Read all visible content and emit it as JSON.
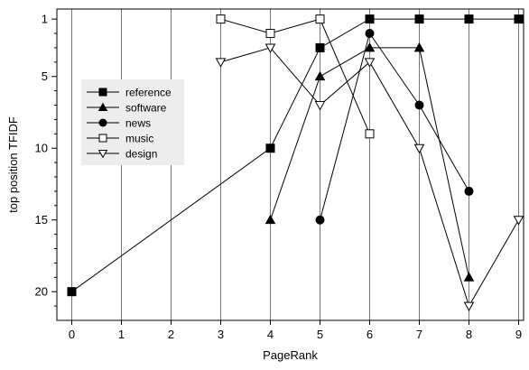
{
  "chart_data": {
    "type": "line",
    "title": "",
    "xlabel": "PageRank",
    "ylabel": "top position TFIDF",
    "x_ticks": [
      0,
      1,
      2,
      3,
      4,
      5,
      6,
      7,
      8,
      9
    ],
    "y_ticks": [
      1,
      5,
      10,
      15,
      20
    ],
    "xlim": [
      -0.3,
      9.1
    ],
    "ylim": [
      22,
      0.3
    ],
    "y_inverted": true,
    "grid": "vertical",
    "legend": "left, inside plot",
    "series": [
      {
        "name": "reference",
        "marker": "filled-square",
        "x": [
          0,
          4,
          5,
          6,
          7,
          8,
          9
        ],
        "y": [
          20,
          10,
          3,
          1,
          1,
          1,
          1
        ]
      },
      {
        "name": "software",
        "marker": "filled-triangle",
        "x": [
          4,
          5,
          6,
          7,
          8
        ],
        "y": [
          15,
          5,
          3,
          3,
          19
        ]
      },
      {
        "name": "news",
        "marker": "filled-circle",
        "x": [
          5,
          6,
          7,
          8
        ],
        "y": [
          15,
          2,
          7,
          13
        ]
      },
      {
        "name": "music",
        "marker": "open-square",
        "x": [
          3,
          4,
          5,
          6
        ],
        "y": [
          1,
          2,
          1,
          9
        ]
      },
      {
        "name": "design",
        "marker": "open-triangle-down",
        "x": [
          3,
          4,
          5,
          6,
          7,
          8,
          9
        ],
        "y": [
          4,
          3,
          7,
          4,
          10,
          21,
          15
        ]
      }
    ]
  }
}
